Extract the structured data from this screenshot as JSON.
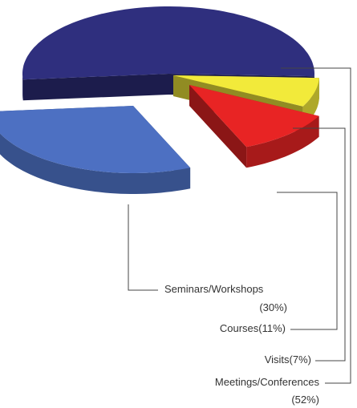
{
  "chart_data": {
    "type": "pie",
    "categories": [
      "Meetings/Conferences",
      "Visits",
      "Courses",
      "Seminars/Workshops"
    ],
    "values": [
      52,
      7,
      11,
      30
    ],
    "value_labels": [
      "(52%)",
      "(7%)",
      "(11%)",
      "(30%)"
    ],
    "colors": [
      "#2f2f7e",
      "#f2ea3a",
      "#e82424",
      "#4d70c2"
    ]
  }
}
